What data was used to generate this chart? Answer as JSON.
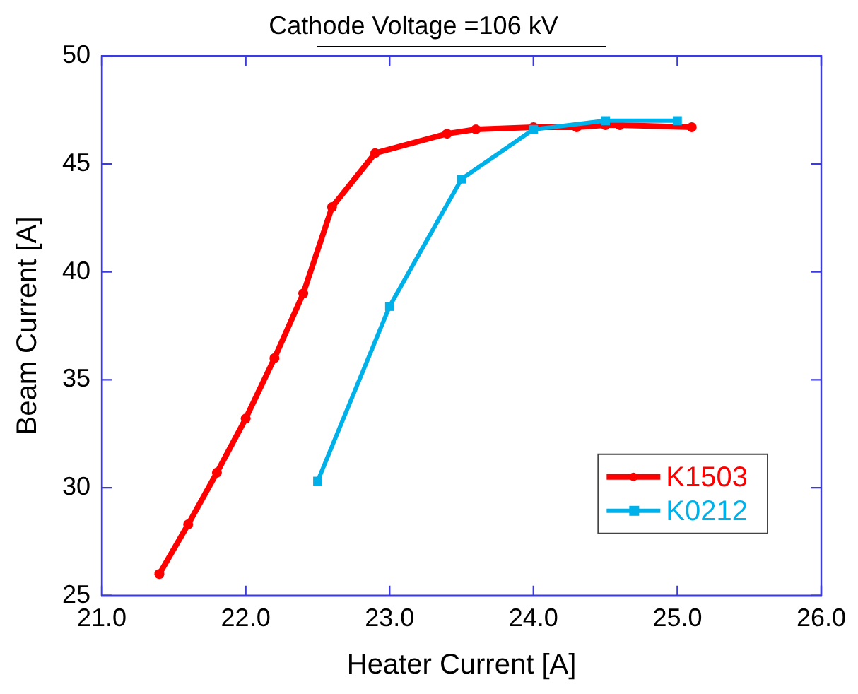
{
  "chart_data": {
    "type": "line",
    "title": "Cathode Voltage =106 kV",
    "xlabel": "Heater Current [A]",
    "ylabel": "Beam Current [A]",
    "xlim": [
      21,
      26
    ],
    "xticks": [
      {
        "value": 21,
        "label": "21.0"
      },
      {
        "value": 22,
        "label": "22.0"
      },
      {
        "value": 23,
        "label": "23.0"
      },
      {
        "value": 24,
        "label": "24.0"
      },
      {
        "value": 25,
        "label": "25.0"
      },
      {
        "value": 26,
        "label": "26.0"
      }
    ],
    "ylim": [
      25,
      50
    ],
    "yticks": [
      25,
      30,
      35,
      40,
      45,
      50
    ],
    "grid": false,
    "legend": "bottom right",
    "series": [
      {
        "name": "K1503",
        "color": "#ff0000",
        "marker": "circle",
        "x": [
          21.4,
          21.6,
          21.8,
          22.0,
          22.2,
          22.4,
          22.6,
          22.9,
          23.4,
          23.6,
          24.0,
          24.3,
          24.5,
          24.6,
          25.1
        ],
        "values": [
          26.0,
          28.3,
          30.7,
          33.2,
          36.0,
          39.0,
          43.0,
          45.5,
          46.4,
          46.6,
          46.7,
          46.7,
          46.8,
          46.8,
          46.7
        ]
      },
      {
        "name": "K0212",
        "color": "#00b0e8",
        "marker": "square",
        "x": [
          22.5,
          23.0,
          23.5,
          24.0,
          24.5,
          25.0
        ],
        "values": [
          30.3,
          38.4,
          44.3,
          46.6,
          47.0,
          47.0
        ]
      }
    ]
  }
}
